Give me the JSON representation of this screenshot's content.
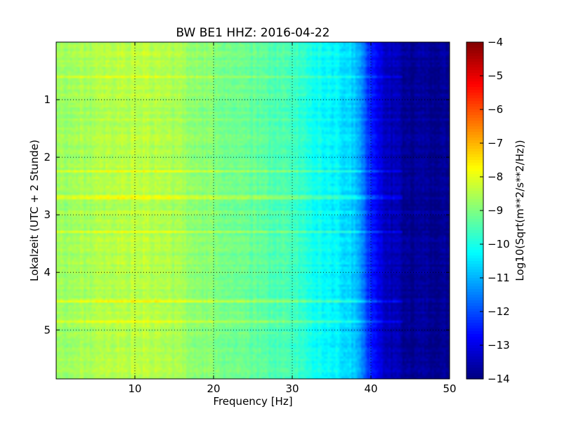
{
  "chart_data": {
    "type": "heatmap",
    "title": "BW BE1 HHZ: 2016-04-22",
    "xlabel": "Frequency [Hz]",
    "ylabel": "Lokalzeit (UTC + 2 Stunde)",
    "colorbar_label": "Log10(Sqrt(m**2/s**2/Hz))",
    "xlim": [
      0,
      50
    ],
    "ylim": [
      5.85,
      0
    ],
    "y_inverted": true,
    "xticks": [
      10,
      20,
      30,
      40,
      50
    ],
    "xtick_labels": [
      "10",
      "20",
      "30",
      "40",
      "50"
    ],
    "yticks": [
      1,
      2,
      3,
      4,
      5
    ],
    "ytick_labels": [
      "1",
      "2",
      "3",
      "4",
      "5"
    ],
    "colorbar_range": [
      -14,
      -4
    ],
    "colorbar_ticks": [
      -4,
      -5,
      -6,
      -7,
      -8,
      -9,
      -10,
      -11,
      -12,
      -13,
      -14
    ],
    "colorbar_tick_labels": [
      "−4",
      "−5",
      "−6",
      "−7",
      "−8",
      "−9",
      "−10",
      "−11",
      "−12",
      "−13",
      "−14"
    ],
    "colormap": "jet",
    "grid": true,
    "grid_style": "dotted",
    "spectrum_profile": {
      "frequency_hz": [
        0,
        5,
        10,
        15,
        20,
        25,
        30,
        33,
        36,
        38,
        40,
        42,
        45,
        50
      ],
      "log10_amplitude": [
        -8.7,
        -8.6,
        -8.4,
        -8.6,
        -9.0,
        -9.3,
        -9.6,
        -10.1,
        -10.4,
        -10.8,
        -12.5,
        -13.4,
        -13.8,
        -13.8
      ]
    },
    "bright_bands_local_hour": [
      0.6,
      2.25,
      2.7,
      3.3,
      4.5,
      4.85
    ]
  }
}
